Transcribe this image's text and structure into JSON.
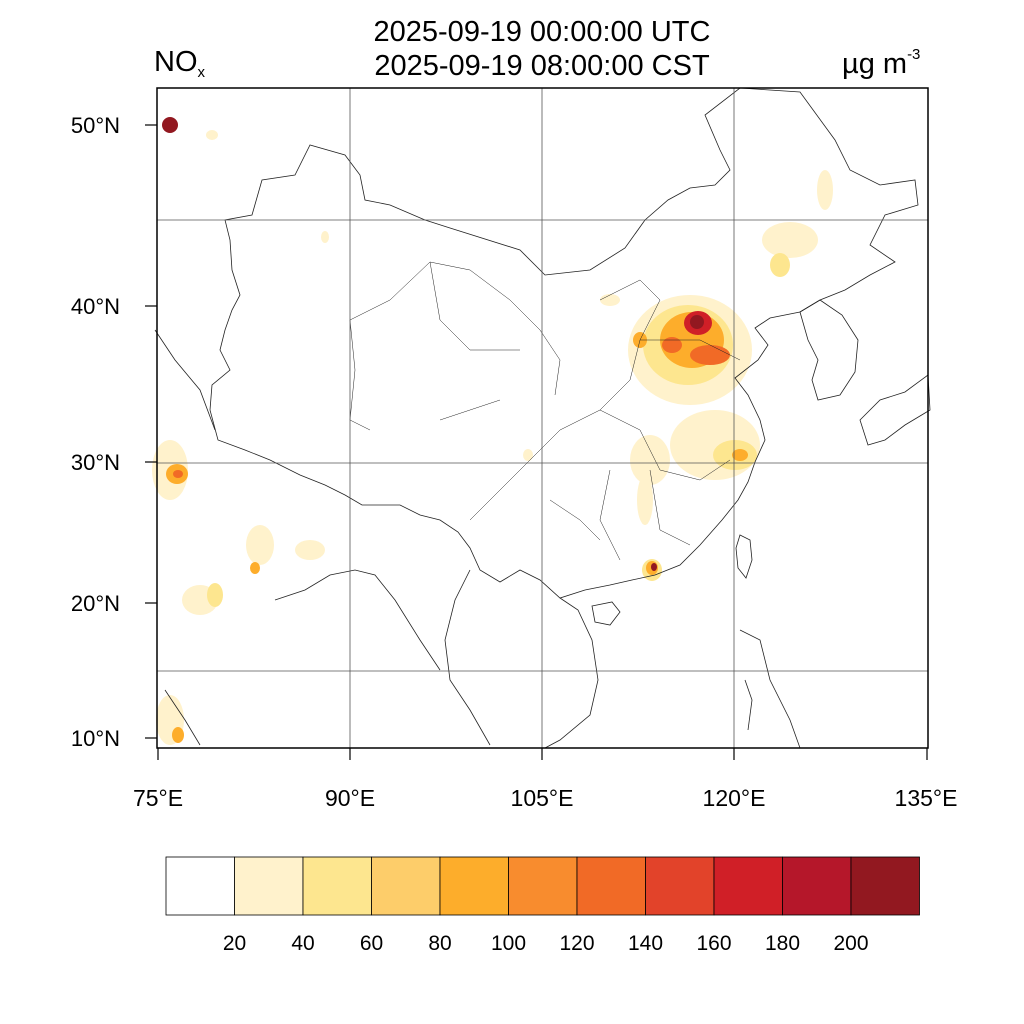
{
  "header": {
    "title_utc": "2025-09-19 00:00:00 UTC",
    "title_cst": "2025-09-19 08:00:00 CST",
    "species_main": "NO",
    "species_sub": "x",
    "unit_main": "µg m",
    "unit_sup": "-3"
  },
  "axes": {
    "lat_labels": [
      "50°N",
      "40°N",
      "30°N",
      "20°N",
      "10°N"
    ],
    "lon_labels": [
      "75°E",
      "90°E",
      "105°E",
      "120°E",
      "135°E"
    ]
  },
  "colorbar": {
    "labels": [
      "20",
      "40",
      "60",
      "80",
      "100",
      "120",
      "140",
      "160",
      "180",
      "200"
    ],
    "colors": [
      "#ffffff",
      "#fff2cc",
      "#fde68f",
      "#fdcd6a",
      "#fdad2b",
      "#f88c2e",
      "#f16a26",
      "#e2432a",
      "#d01f27",
      "#b5172a",
      "#921820"
    ]
  },
  "map": {
    "fill_colors": {
      "light": "#fff2cc",
      "yellow": "#fde68f",
      "orange": "#fdad2b",
      "darkorange": "#f16a26",
      "red": "#d01f27",
      "darkred": "#921820"
    }
  }
}
